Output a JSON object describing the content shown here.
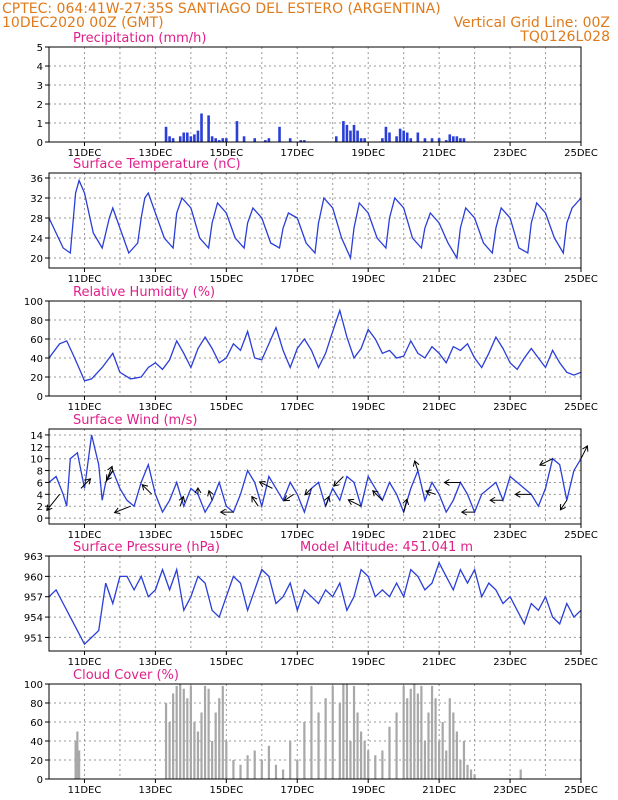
{
  "header": {
    "left_line1": "CPTEC:   064:41W-27:35S   SANTIAGO DEL ESTERO (ARGENTINA)",
    "left_line2": "10DEC2020 00Z (GMT)",
    "right_line2": "Vertical Grid Line: 00Z",
    "right_line3": "TQ0126L028"
  },
  "x_axis": {
    "ticks": [
      "11DEC",
      "13DEC",
      "15DEC",
      "17DEC",
      "19DEC",
      "21DEC",
      "23DEC",
      "25DEC"
    ],
    "tick_days": [
      1,
      3,
      5,
      7,
      9,
      11,
      13,
      15
    ],
    "range_days": [
      0,
      15
    ],
    "vertical_grid_every_days": 1
  },
  "colors": {
    "line": "#2a3ed8",
    "bar": "#2a3ed8",
    "cloud": "#a8a8a8",
    "title": "#e0208a",
    "header": "#e07a1a"
  },
  "chart_data": [
    {
      "type": "bar",
      "title": "Precipitation (mm/h)",
      "ylim": [
        0,
        5
      ],
      "yticks": [
        0,
        1,
        2,
        3,
        4,
        5
      ],
      "x_unit": "days since 10DEC2020 00Z",
      "x": [
        3.3,
        3.4,
        3.5,
        3.7,
        3.8,
        3.9,
        4.0,
        4.1,
        4.2,
        4.3,
        4.5,
        4.6,
        4.7,
        4.8,
        4.9,
        5.0,
        5.3,
        5.5,
        5.8,
        6.1,
        6.2,
        6.5,
        6.8,
        7.1,
        7.2,
        8.1,
        8.3,
        8.4,
        8.5,
        8.6,
        8.7,
        8.8,
        8.9,
        9.4,
        9.5,
        9.6,
        9.8,
        9.9,
        10.0,
        10.1,
        10.2,
        10.4,
        10.6,
        10.8,
        11.0,
        11.2,
        11.3,
        11.4,
        11.5,
        11.6,
        11.7
      ],
      "values": [
        0.8,
        0.3,
        0.2,
        0.3,
        0.5,
        0.5,
        0.3,
        0.4,
        0.6,
        1.5,
        1.4,
        0.3,
        0.2,
        0.1,
        0.2,
        0.2,
        1.1,
        0.3,
        0.2,
        0.1,
        0.2,
        0.8,
        0.2,
        0.1,
        0.1,
        0.3,
        1.1,
        0.9,
        0.6,
        0.9,
        0.6,
        0.2,
        0.2,
        0.2,
        0.8,
        0.5,
        0.3,
        0.7,
        0.6,
        0.5,
        0.2,
        0.5,
        0.2,
        0.2,
        0.2,
        0.1,
        0.4,
        0.3,
        0.3,
        0.2,
        0.2
      ]
    },
    {
      "type": "line",
      "title": "Surface Temperature (nC)",
      "ylim": [
        18,
        37
      ],
      "yticks": [
        20,
        24,
        28,
        32,
        36
      ],
      "x_unit": "days since 10DEC2020 00Z",
      "x": [
        0,
        0.2,
        0.4,
        0.6,
        0.75,
        0.85,
        1.0,
        1.25,
        1.5,
        1.7,
        1.8,
        2.0,
        2.25,
        2.5,
        2.6,
        2.7,
        2.8,
        3.0,
        3.25,
        3.5,
        3.6,
        3.75,
        4.0,
        4.25,
        4.5,
        4.6,
        4.75,
        5.0,
        5.25,
        5.5,
        5.6,
        5.75,
        6.0,
        6.25,
        6.5,
        6.6,
        6.75,
        7.0,
        7.25,
        7.5,
        7.6,
        7.75,
        8.0,
        8.25,
        8.5,
        8.6,
        8.75,
        9.0,
        9.25,
        9.5,
        9.6,
        9.75,
        10.0,
        10.25,
        10.5,
        10.6,
        10.75,
        11.0,
        11.25,
        11.5,
        11.6,
        11.75,
        12.0,
        12.25,
        12.5,
        12.6,
        12.75,
        13.0,
        13.25,
        13.5,
        13.6,
        13.75,
        14.0,
        14.25,
        14.5,
        14.6,
        14.75,
        15.0
      ],
      "values": [
        28,
        25,
        22,
        21,
        33,
        35.5,
        33,
        25,
        22,
        28,
        30,
        26,
        21,
        23,
        28,
        32,
        33,
        29,
        24,
        22,
        29,
        32,
        30,
        24,
        22,
        27,
        31,
        29,
        24,
        22,
        27,
        30,
        28,
        23,
        22,
        26,
        29,
        28,
        23,
        21,
        27,
        32,
        30,
        24,
        20,
        26,
        31,
        29,
        24,
        22,
        28,
        32,
        30,
        24,
        22,
        26,
        29,
        27,
        23,
        20,
        26,
        30,
        28,
        23,
        21,
        26,
        30,
        28,
        22,
        21,
        27,
        31,
        29,
        24,
        21,
        27,
        30,
        32
      ]
    },
    {
      "type": "line",
      "title": "Relative Humidity (%)",
      "ylim": [
        0,
        100
      ],
      "yticks": [
        0,
        20,
        40,
        60,
        80,
        100
      ],
      "x_unit": "days since 10DEC2020 00Z",
      "x": [
        0,
        0.3,
        0.5,
        0.7,
        0.9,
        1.0,
        1.2,
        1.5,
        1.8,
        2.0,
        2.3,
        2.6,
        2.8,
        3.0,
        3.2,
        3.4,
        3.6,
        3.8,
        4.0,
        4.2,
        4.4,
        4.6,
        4.8,
        5.0,
        5.2,
        5.4,
        5.6,
        5.8,
        6.0,
        6.2,
        6.4,
        6.6,
        6.8,
        7.0,
        7.2,
        7.4,
        7.6,
        7.8,
        8.0,
        8.2,
        8.4,
        8.6,
        8.8,
        9.0,
        9.2,
        9.4,
        9.6,
        9.8,
        10.0,
        10.2,
        10.4,
        10.6,
        10.8,
        11.0,
        11.2,
        11.4,
        11.6,
        11.8,
        12.0,
        12.2,
        12.4,
        12.6,
        12.8,
        13.0,
        13.2,
        13.4,
        13.6,
        13.8,
        14.0,
        14.2,
        14.4,
        14.6,
        14.8,
        15.0
      ],
      "values": [
        40,
        55,
        58,
        42,
        25,
        16,
        18,
        30,
        45,
        25,
        18,
        20,
        30,
        35,
        28,
        38,
        58,
        45,
        30,
        50,
        62,
        50,
        35,
        40,
        55,
        48,
        68,
        40,
        38,
        55,
        72,
        48,
        30,
        50,
        60,
        48,
        30,
        45,
        68,
        90,
        62,
        40,
        50,
        70,
        60,
        45,
        48,
        40,
        42,
        58,
        45,
        40,
        52,
        45,
        35,
        52,
        48,
        55,
        40,
        30,
        45,
        62,
        50,
        35,
        28,
        40,
        50,
        40,
        30,
        48,
        35,
        25,
        22,
        25
      ]
    },
    {
      "type": "line",
      "title": "Surface Wind (m/s)",
      "ylim": [
        -1,
        15
      ],
      "yticks": [
        0,
        2,
        4,
        6,
        8,
        10,
        12,
        14
      ],
      "x_unit": "days since 10DEC2020 00Z",
      "x": [
        0,
        0.2,
        0.4,
        0.5,
        0.6,
        0.8,
        1.0,
        1.2,
        1.4,
        1.5,
        1.6,
        1.8,
        2.0,
        2.2,
        2.4,
        2.6,
        2.8,
        3.0,
        3.2,
        3.4,
        3.6,
        3.8,
        4.0,
        4.2,
        4.4,
        4.6,
        4.8,
        5.0,
        5.2,
        5.4,
        5.6,
        5.8,
        6.0,
        6.2,
        6.4,
        6.6,
        6.8,
        7.0,
        7.2,
        7.4,
        7.6,
        7.8,
        8.0,
        8.2,
        8.4,
        8.6,
        8.8,
        9.0,
        9.2,
        9.4,
        9.6,
        9.8,
        10.0,
        10.2,
        10.4,
        10.6,
        10.8,
        11.0,
        11.2,
        11.4,
        11.6,
        11.8,
        12.0,
        12.2,
        12.4,
        12.6,
        12.8,
        13.0,
        13.2,
        13.4,
        13.6,
        13.8,
        14.0,
        14.2,
        14.4,
        14.6,
        14.8,
        15.0
      ],
      "values": [
        6,
        7,
        4,
        2,
        10,
        11,
        5,
        14,
        9,
        3,
        6,
        8,
        5,
        3,
        2,
        6,
        9,
        4,
        1,
        3,
        6,
        2,
        5,
        4,
        1,
        3,
        6,
        2,
        1,
        4,
        8,
        6,
        2,
        7,
        5,
        3,
        6,
        4,
        1,
        5,
        6,
        2,
        5,
        3,
        7,
        6,
        2,
        7,
        5,
        3,
        6,
        4,
        1,
        5,
        8,
        3,
        6,
        4,
        1,
        3,
        6,
        4,
        1,
        4,
        5,
        6,
        3,
        7,
        6,
        5,
        4,
        2,
        5,
        10,
        9,
        3,
        8,
        10
      ],
      "arrows": [
        {
          "x": 0.3,
          "u": -4,
          "v": -5
        },
        {
          "x": 0.9,
          "u": 3,
          "v": 3
        },
        {
          "x": 1.6,
          "u": 2,
          "v": 5
        },
        {
          "x": 1.8,
          "u": -2,
          "v": -3
        },
        {
          "x": 2.3,
          "u": -5,
          "v": -2
        },
        {
          "x": 2.9,
          "u": -3,
          "v": 3
        },
        {
          "x": 3.7,
          "u": 1,
          "v": 3
        },
        {
          "x": 4.2,
          "u": 0,
          "v": 2
        },
        {
          "x": 4.6,
          "u": -1,
          "v": 3
        },
        {
          "x": 5.2,
          "u": -4,
          "v": 0
        },
        {
          "x": 5.9,
          "u": -2,
          "v": 3
        },
        {
          "x": 6.3,
          "u": -4,
          "v": 2
        },
        {
          "x": 6.9,
          "u": -3,
          "v": -2
        },
        {
          "x": 7.4,
          "u": -2,
          "v": -2
        },
        {
          "x": 7.8,
          "u": 1,
          "v": 3
        },
        {
          "x": 8.3,
          "u": -3,
          "v": -3
        },
        {
          "x": 8.8,
          "u": -4,
          "v": 2
        },
        {
          "x": 9.4,
          "u": -3,
          "v": 3
        },
        {
          "x": 10.0,
          "u": 1,
          "v": 4
        },
        {
          "x": 10.4,
          "u": -1,
          "v": 3
        },
        {
          "x": 10.9,
          "u": -3,
          "v": 1
        },
        {
          "x": 11.6,
          "u": -5,
          "v": 0
        },
        {
          "x": 12.0,
          "u": -4,
          "v": 0
        },
        {
          "x": 12.8,
          "u": -4,
          "v": 0
        },
        {
          "x": 13.6,
          "u": -5,
          "v": 0
        },
        {
          "x": 14.2,
          "u": -4,
          "v": -2
        },
        {
          "x": 14.6,
          "u": -2,
          "v": -3
        },
        {
          "x": 15.0,
          "u": 2,
          "v": 4
        }
      ]
    },
    {
      "type": "line",
      "title": "Surface Pressure (hPa)",
      "annotation": "Model Altitude: 451.041 m",
      "ylim": [
        949,
        963
      ],
      "yticks": [
        951,
        954,
        957,
        960,
        963
      ],
      "x_unit": "days since 10DEC2020 00Z",
      "x": [
        0,
        0.2,
        0.4,
        0.6,
        0.8,
        1.0,
        1.2,
        1.4,
        1.6,
        1.8,
        2.0,
        2.2,
        2.4,
        2.6,
        2.8,
        3.0,
        3.2,
        3.4,
        3.6,
        3.8,
        4.0,
        4.2,
        4.4,
        4.6,
        4.8,
        5.0,
        5.2,
        5.4,
        5.6,
        5.8,
        6.0,
        6.2,
        6.4,
        6.6,
        6.8,
        7.0,
        7.2,
        7.4,
        7.6,
        7.8,
        8.0,
        8.2,
        8.4,
        8.6,
        8.8,
        9.0,
        9.2,
        9.4,
        9.6,
        9.8,
        10.0,
        10.2,
        10.4,
        10.6,
        10.8,
        11.0,
        11.2,
        11.4,
        11.6,
        11.8,
        12.0,
        12.2,
        12.4,
        12.6,
        12.8,
        13.0,
        13.2,
        13.4,
        13.6,
        13.8,
        14.0,
        14.2,
        14.4,
        14.6,
        14.8,
        15.0
      ],
      "values": [
        957,
        958,
        956,
        954,
        952,
        950,
        951,
        952,
        959,
        956,
        960,
        960,
        958,
        960,
        957,
        958,
        961,
        958,
        961,
        955,
        957,
        960,
        959,
        955,
        954,
        957,
        960,
        959,
        955,
        958,
        961,
        960,
        956,
        957,
        959,
        955,
        958,
        957,
        956,
        958,
        957,
        959,
        955,
        957,
        961,
        960,
        957,
        958,
        957,
        959,
        957,
        961,
        960,
        958,
        959,
        962,
        960,
        958,
        961,
        959,
        961,
        957,
        959,
        958,
        956,
        957,
        955,
        953,
        956,
        955,
        957,
        954,
        953,
        956,
        954,
        955
      ]
    },
    {
      "type": "bar",
      "title": "Cloud Cover (%)",
      "ylim": [
        0,
        100
      ],
      "yticks": [
        0,
        20,
        40,
        60,
        80,
        100
      ],
      "x_unit": "days since 10DEC2020 00Z",
      "x": [
        0.75,
        0.8,
        0.85,
        3.3,
        3.4,
        3.5,
        3.6,
        3.7,
        3.8,
        3.9,
        4.0,
        4.1,
        4.2,
        4.3,
        4.4,
        4.5,
        4.6,
        4.7,
        4.8,
        4.9,
        5.0,
        5.2,
        5.4,
        5.6,
        5.8,
        6.0,
        6.2,
        6.4,
        6.6,
        6.8,
        7.0,
        7.2,
        7.4,
        7.6,
        7.8,
        8.0,
        8.2,
        8.3,
        8.4,
        8.5,
        8.6,
        8.7,
        8.8,
        8.9,
        9.0,
        9.2,
        9.4,
        9.6,
        9.8,
        10.0,
        10.1,
        10.2,
        10.3,
        10.4,
        10.5,
        10.6,
        10.7,
        10.8,
        10.9,
        11.0,
        11.1,
        11.2,
        11.3,
        11.4,
        11.5,
        11.6,
        11.7,
        11.8,
        11.9,
        12.0,
        13.3
      ],
      "values": [
        40,
        50,
        30,
        80,
        60,
        90,
        98,
        100,
        95,
        85,
        98,
        60,
        50,
        70,
        98,
        95,
        40,
        70,
        85,
        98,
        40,
        20,
        15,
        25,
        30,
        20,
        35,
        15,
        10,
        40,
        20,
        60,
        98,
        70,
        85,
        98,
        80,
        100,
        100,
        40,
        98,
        70,
        50,
        40,
        30,
        25,
        30,
        55,
        70,
        98,
        85,
        95,
        100,
        90,
        98,
        40,
        70,
        98,
        85,
        40,
        60,
        30,
        85,
        70,
        50,
        20,
        40,
        15,
        10,
        5,
        10
      ]
    }
  ]
}
